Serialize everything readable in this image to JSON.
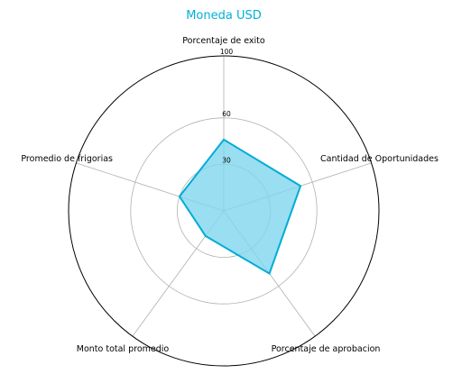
{
  "chart_data": {
    "type": "radar",
    "title": "Moneda USD",
    "axes": [
      "Porcentaje de exito",
      "Cantidad de Oportunidades",
      "Porcentaje de aprobacion",
      "Monto total promedio",
      "Promedio de frigorias"
    ],
    "series": [
      {
        "values": [
          46,
          52,
          50,
          20,
          30
        ]
      }
    ],
    "rlim": [
      0,
      100
    ],
    "r_ticks": [
      30,
      60,
      100
    ],
    "grid": true,
    "colors": {
      "title": "#00b0d8",
      "line": "#00acd6",
      "fill": "#7fd6ee",
      "grid": "#b0b0b0",
      "outer": "#000000"
    }
  }
}
